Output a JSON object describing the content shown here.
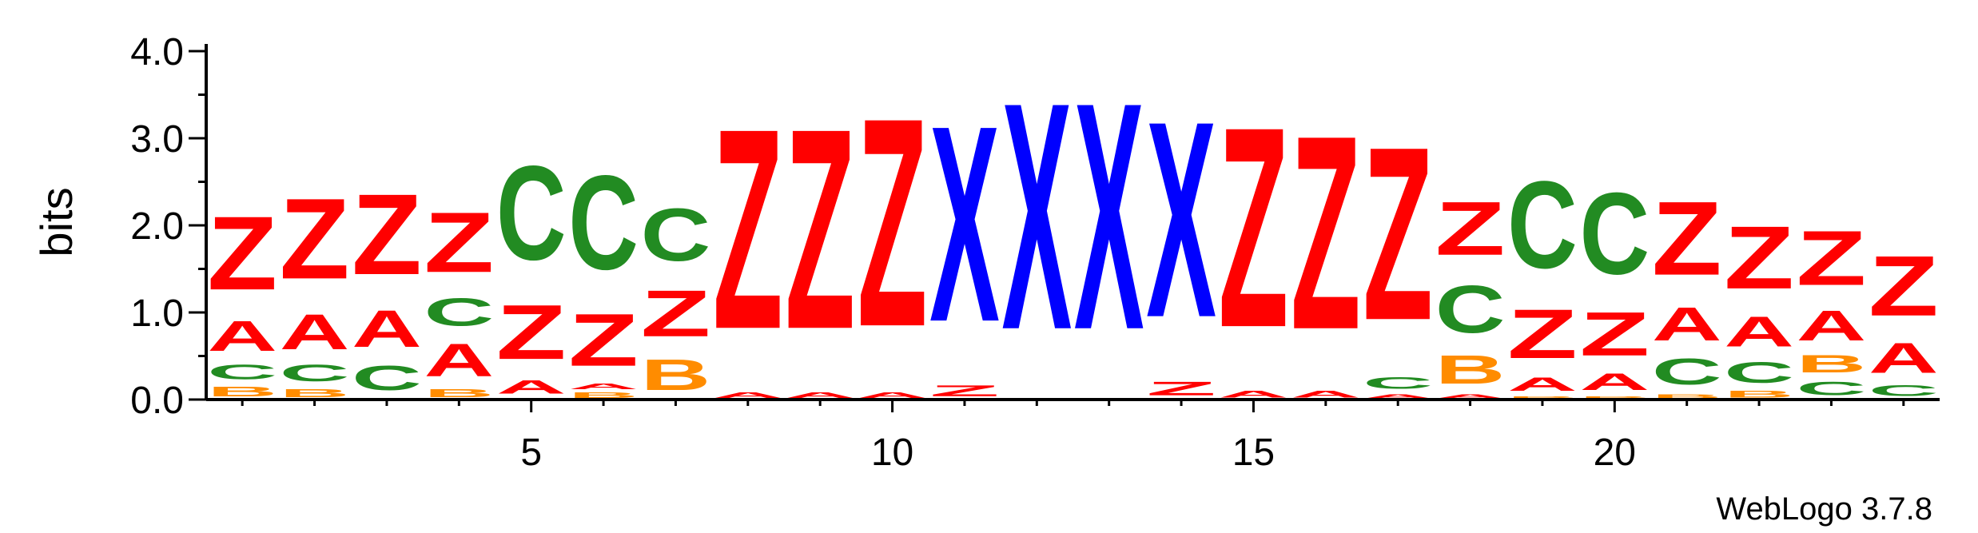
{
  "chart_data": {
    "type": "sequence-logo",
    "ylabel": "bits",
    "ylim": [
      0,
      4.0
    ],
    "yticks": [
      "0.0",
      "1.0",
      "2.0",
      "3.0",
      "4.0"
    ],
    "xlim": [
      0.5,
      24.5
    ],
    "xticks": [
      "5",
      "10",
      "15",
      "20"
    ],
    "xtick_values": [
      5,
      10,
      15,
      20
    ],
    "credit": "WebLogo 3.7.8",
    "colors": {
      "Z": "#ff0000",
      "A": "#ff0000",
      "X": "#0000ff",
      "C": "#228b22",
      "B": "#ff8c00"
    },
    "positions": [
      {
        "pos": 1,
        "letters": [
          [
            "B",
            0.18
          ],
          [
            "C",
            0.27
          ],
          [
            "A",
            0.55
          ],
          [
            "Z",
            1.35
          ]
        ]
      },
      {
        "pos": 2,
        "letters": [
          [
            "B",
            0.15
          ],
          [
            "C",
            0.3
          ],
          [
            "A",
            0.65
          ],
          [
            "Z",
            1.48
          ]
        ]
      },
      {
        "pos": 3,
        "letters": [
          [
            "B",
            0.02
          ],
          [
            "C",
            0.45
          ],
          [
            "A",
            0.68
          ],
          [
            "Z",
            1.48
          ]
        ]
      },
      {
        "pos": 4,
        "letters": [
          [
            "B",
            0.15
          ],
          [
            "A",
            0.6
          ],
          [
            "C",
            0.5
          ],
          [
            "Z",
            1.1
          ]
        ]
      },
      {
        "pos": 5,
        "letters": [
          [
            "B",
            0.02
          ],
          [
            "A",
            0.25
          ],
          [
            "Z",
            1.0
          ],
          [
            "C",
            1.73
          ]
        ]
      },
      {
        "pos": 6,
        "letters": [
          [
            "B",
            0.1
          ],
          [
            "A",
            0.1
          ],
          [
            "Z",
            0.96
          ],
          [
            "C",
            1.73
          ]
        ]
      },
      {
        "pos": 7,
        "letters": [
          [
            "B",
            0.56
          ],
          [
            "Z",
            0.85
          ],
          [
            "C",
            0.96
          ]
        ]
      },
      {
        "pos": 8,
        "letters": [
          [
            "A",
            0.1
          ],
          [
            "Z",
            3.68
          ]
        ]
      },
      {
        "pos": 9,
        "letters": [
          [
            "A",
            0.1
          ],
          [
            "Z",
            3.68
          ]
        ]
      },
      {
        "pos": 10,
        "letters": [
          [
            "A",
            0.1
          ],
          [
            "Z",
            3.83
          ]
        ]
      },
      {
        "pos": 11,
        "letters": [
          [
            "Z",
            0.2
          ],
          [
            "X",
            3.6
          ]
        ]
      },
      {
        "pos": 12,
        "letters": [
          [
            "X",
            4.17
          ]
        ]
      },
      {
        "pos": 13,
        "letters": [
          [
            "X",
            4.17
          ]
        ]
      },
      {
        "pos": 14,
        "letters": [
          [
            "Z",
            0.25
          ],
          [
            "X",
            3.6
          ]
        ]
      },
      {
        "pos": 15,
        "letters": [
          [
            "A",
            0.12
          ],
          [
            "Z",
            3.68
          ]
        ]
      },
      {
        "pos": 16,
        "letters": [
          [
            "A",
            0.12
          ],
          [
            "Z",
            3.56
          ]
        ]
      },
      {
        "pos": 17,
        "letters": [
          [
            "A",
            0.08
          ],
          [
            "C",
            0.22
          ],
          [
            "Z",
            3.18
          ]
        ]
      },
      {
        "pos": 18,
        "letters": [
          [
            "A",
            0.08
          ],
          [
            "B",
            0.52
          ],
          [
            "C",
            0.87
          ],
          [
            "Z",
            0.98
          ]
        ]
      },
      {
        "pos": 19,
        "letters": [
          [
            "B",
            0.05
          ],
          [
            "A",
            0.25
          ],
          [
            "Z",
            0.9
          ],
          [
            "C",
            1.6
          ]
        ]
      },
      {
        "pos": 20,
        "letters": [
          [
            "B",
            0.05
          ],
          [
            "A",
            0.3
          ],
          [
            "Z",
            0.8
          ],
          [
            "C",
            1.5
          ]
        ]
      },
      {
        "pos": 21,
        "letters": [
          [
            "B",
            0.08
          ],
          [
            "C",
            0.48
          ],
          [
            "A",
            0.61
          ],
          [
            "Z",
            1.35
          ]
        ]
      },
      {
        "pos": 22,
        "letters": [
          [
            "B",
            0.12
          ],
          [
            "C",
            0.38
          ],
          [
            "A",
            0.55
          ],
          [
            "Z",
            1.15
          ]
        ]
      },
      {
        "pos": 23,
        "letters": [
          [
            "C",
            0.25
          ],
          [
            "B",
            0.32
          ],
          [
            "A",
            0.55
          ],
          [
            "Z",
            1.0
          ]
        ]
      },
      {
        "pos": 24,
        "letters": [
          [
            "C",
            0.2
          ],
          [
            "A",
            0.55
          ],
          [
            "Z",
            1.1
          ]
        ]
      }
    ]
  }
}
